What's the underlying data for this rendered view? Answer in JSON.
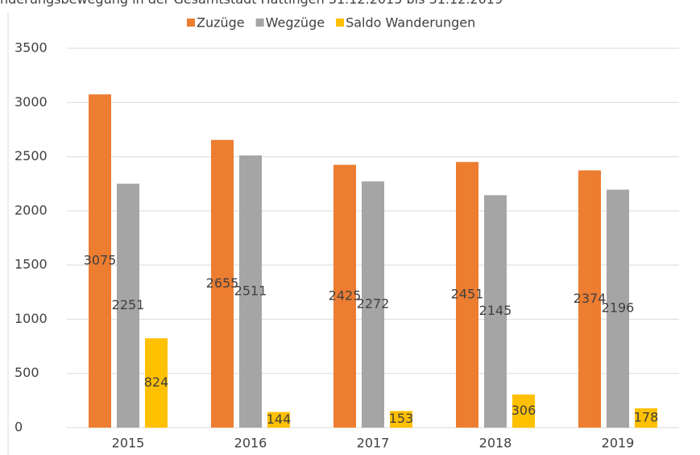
{
  "chart_data": {
    "type": "bar",
    "title": "nderungsbewegung in der Gesamtstadt Hattingen 31.12.2015 bis 31.12.2019",
    "categories": [
      "2015",
      "2016",
      "2017",
      "2018",
      "2019"
    ],
    "series": [
      {
        "name": "Zuzüge",
        "color": "#ed7d31",
        "values": [
          3075,
          2655,
          2425,
          2451,
          2374
        ]
      },
      {
        "name": "Wegzüge",
        "color": "#a5a5a5",
        "values": [
          2251,
          2511,
          2272,
          2145,
          2196
        ]
      },
      {
        "name": "Saldo Wanderungen",
        "color": "#ffc000",
        "values": [
          824,
          144,
          153,
          306,
          178
        ]
      }
    ],
    "ylim": [
      0,
      3500
    ],
    "yticks": [
      0,
      500,
      1000,
      1500,
      2000,
      2500,
      3000,
      3500
    ],
    "grid": true,
    "legend": "top"
  }
}
